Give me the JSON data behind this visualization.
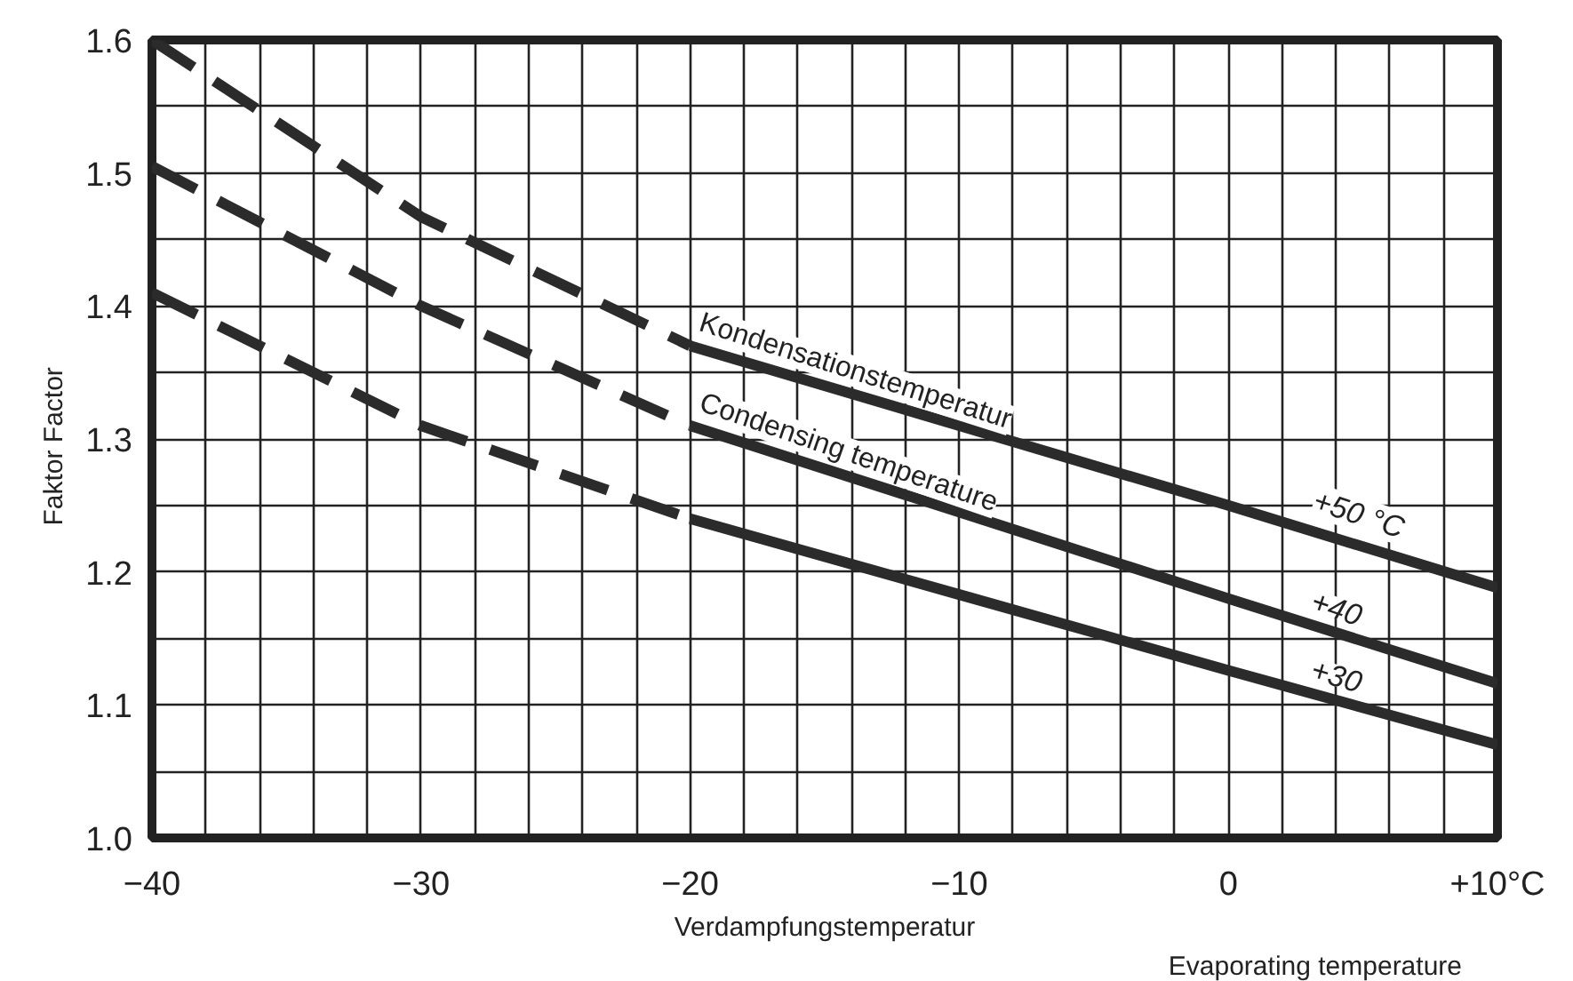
{
  "chart_data": {
    "type": "line",
    "xlabel": "Verdampfungstemperatur",
    "ylabel": "Faktor   Factor",
    "annotations": [
      "Evaporating temperature",
      "Kondensationstemperatur",
      "Condensing temperature"
    ],
    "series": [
      {
        "color": "#2b2b2b",
        "line_style": "dashed",
        "x": [
          -40,
          -30,
          -20
        ],
        "values": [
          1.6,
          1.467,
          1.37
        ]
      },
      {
        "name": "+50 °C",
        "color": "#2b2b2b",
        "line_style": "solid",
        "x": [
          -20,
          -10,
          0,
          10
        ],
        "values": [
          1.37,
          1.31,
          1.25,
          1.188
        ]
      },
      {
        "color": "#2b2b2b",
        "line_style": "dashed",
        "x": [
          -40,
          -30,
          -20
        ],
        "values": [
          1.505,
          1.4,
          1.31
        ]
      },
      {
        "name": "+40",
        "color": "#2b2b2b",
        "line_style": "solid",
        "x": [
          -20,
          -10,
          0,
          10
        ],
        "values": [
          1.31,
          1.245,
          1.18,
          1.116
        ]
      },
      {
        "color": "#2b2b2b",
        "line_style": "dashed",
        "x": [
          -40,
          -30,
          -20
        ],
        "values": [
          1.41,
          1.31,
          1.24
        ]
      },
      {
        "name": "+30",
        "color": "#2b2b2b",
        "line_style": "solid",
        "x": [
          -20,
          -10,
          0,
          10
        ],
        "values": [
          1.24,
          1.183,
          1.126,
          1.07
        ]
      }
    ],
    "xlim": [
      -40,
      10
    ],
    "ylim": [
      1.0,
      1.6
    ],
    "xticks": [
      {
        "value": -40,
        "label": "−40"
      },
      {
        "value": -38,
        "label": null
      },
      {
        "value": -36,
        "label": null
      },
      {
        "value": -34,
        "label": null
      },
      {
        "value": -32,
        "label": null
      },
      {
        "value": -30,
        "label": "−30"
      },
      {
        "value": -28,
        "label": null
      },
      {
        "value": -26,
        "label": null
      },
      {
        "value": -24,
        "label": null
      },
      {
        "value": -22,
        "label": null
      },
      {
        "value": -20,
        "label": "−20"
      },
      {
        "value": -18,
        "label": null
      },
      {
        "value": -16,
        "label": null
      },
      {
        "value": -14,
        "label": null
      },
      {
        "value": -12,
        "label": null
      },
      {
        "value": -10,
        "label": "−10"
      },
      {
        "value": -8,
        "label": null
      },
      {
        "value": -6,
        "label": null
      },
      {
        "value": -4,
        "label": null
      },
      {
        "value": -2,
        "label": null
      },
      {
        "value": 0,
        "label": "0"
      },
      {
        "value": 2,
        "label": null
      },
      {
        "value": 4,
        "label": null
      },
      {
        "value": 6,
        "label": null
      },
      {
        "value": 8,
        "label": null
      },
      {
        "value": 10,
        "label": "+10°C"
      }
    ],
    "yticks": [
      {
        "value": 1.0,
        "label": "1.0"
      },
      {
        "value": 1.05,
        "label": null
      },
      {
        "value": 1.1,
        "label": "1.1"
      },
      {
        "value": 1.15,
        "label": null
      },
      {
        "value": 1.2,
        "label": "1.2"
      },
      {
        "value": 1.25,
        "label": null
      },
      {
        "value": 1.3,
        "label": "1.3"
      },
      {
        "value": 1.35,
        "label": null
      },
      {
        "value": 1.4,
        "label": "1.4"
      },
      {
        "value": 1.45,
        "label": null
      },
      {
        "value": 1.5,
        "label": "1.5"
      },
      {
        "value": 1.55,
        "label": null
      },
      {
        "value": 1.6,
        "label": "1.6"
      }
    ],
    "grid": true
  }
}
